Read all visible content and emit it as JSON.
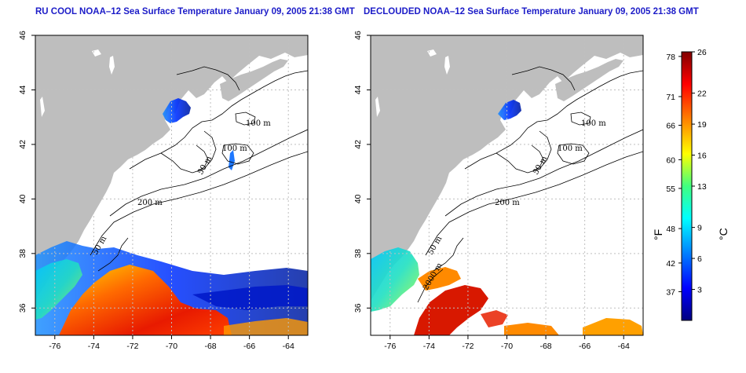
{
  "panels": [
    {
      "title": "RU COOL NOAA–12 Sea Surface Temperature January 09, 2005 21:38 GMT"
    },
    {
      "title": "DECLOUDED NOAA–12 Sea Surface Temperature January 09, 2005 21:38 GMT"
    }
  ],
  "map": {
    "lon_range": [
      -77,
      -63
    ],
    "lat_range": [
      35,
      46
    ],
    "lon_ticks": [
      "-76",
      "-74",
      "-72",
      "-70",
      "-68",
      "-66",
      "-64"
    ],
    "lat_ticks": [
      "36",
      "38",
      "40",
      "42",
      "44",
      "46"
    ],
    "contour_labels": {
      "left": [
        "100 m",
        "100 m",
        "50 m",
        "200 m",
        "50 m"
      ],
      "right": [
        "100 m",
        "100 m",
        "50 m",
        "200 m",
        "50 m",
        "2000 m"
      ]
    },
    "colors": {
      "land": "#bebebe",
      "ocean": "#ffffff",
      "grid": "#bfbfbf"
    }
  },
  "colorbar": {
    "fahrenheit_labels": [
      "78",
      "71",
      "66",
      "60",
      "55",
      "48",
      "42",
      "37"
    ],
    "celsius_labels": [
      "26",
      "22",
      "19",
      "16",
      "13",
      "9",
      "6",
      "3"
    ],
    "unit_f": "°F",
    "unit_c": "°C",
    "celsius_range": [
      0,
      26
    ],
    "stops": [
      "#000080",
      "#0000ff",
      "#0080ff",
      "#00ffff",
      "#40ff80",
      "#ffff00",
      "#ff8000",
      "#ff0000",
      "#800000"
    ]
  }
}
